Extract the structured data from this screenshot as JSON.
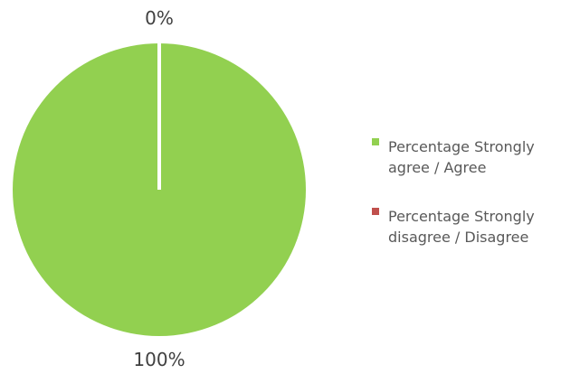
{
  "chart_data": {
    "type": "pie",
    "categories": [
      "Percentage Strongly agree / Agree",
      "Percentage Strongly disagree / Disagree"
    ],
    "values": [
      100,
      0
    ],
    "data_labels": [
      "100%",
      "0%"
    ],
    "colors": [
      "#92D050",
      "#C0504D"
    ],
    "legend_position": "right",
    "title": ""
  }
}
